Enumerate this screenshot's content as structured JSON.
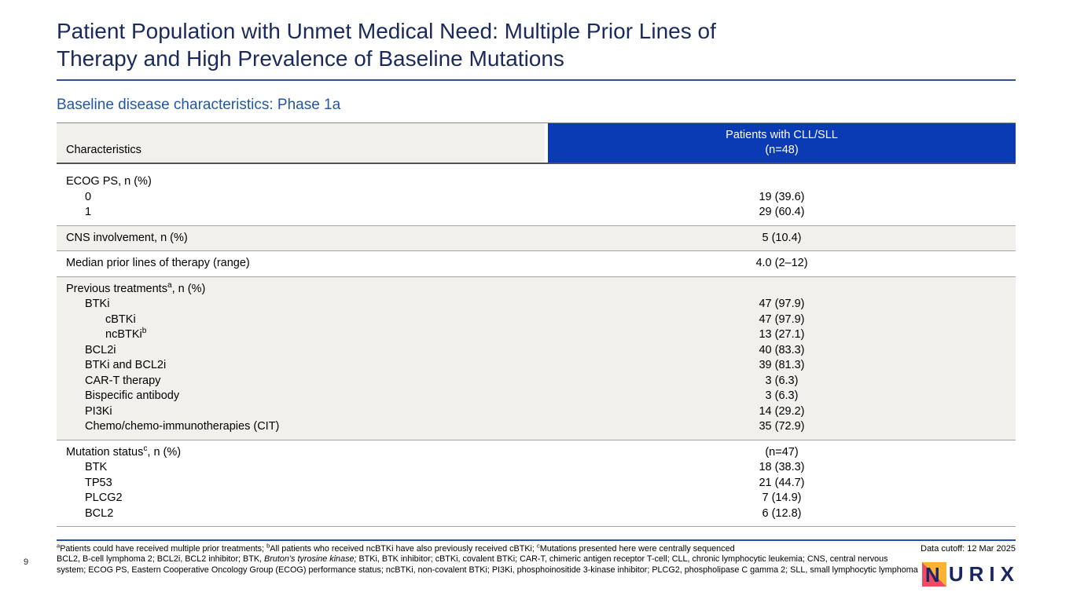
{
  "slide": {
    "title_lines": [
      "Patient Population with Unmet Medical Need: Multiple Prior Lines of",
      "Therapy and High Prevalence of Baseline Mutations"
    ],
    "subtitle": "Baseline disease characteristics: Phase 1a",
    "page_number": "9",
    "data_cutoff": "Data cutoff: 12 Mar 2025"
  },
  "table": {
    "header": {
      "col1": "Characteristics",
      "col2_line1": "Patients with CLL/SLL",
      "col2_line2": "(n=48)"
    },
    "sections": [
      {
        "shaded": false,
        "rows": [
          {
            "label": "ECOG PS, n (%)",
            "sup": "",
            "suffix": "",
            "indent": 0,
            "value": ""
          },
          {
            "label": "0",
            "sup": "",
            "suffix": "",
            "indent": 1,
            "value": "19 (39.6)"
          },
          {
            "label": "1",
            "sup": "",
            "suffix": "",
            "indent": 1,
            "value": "29 (60.4)"
          }
        ]
      },
      {
        "shaded": true,
        "rows": [
          {
            "label": "CNS involvement, n (%)",
            "sup": "",
            "suffix": "",
            "indent": 0,
            "value": "5 (10.4)"
          }
        ]
      },
      {
        "shaded": false,
        "rows": [
          {
            "label": "Median prior lines of therapy (range)",
            "sup": "",
            "suffix": "",
            "indent": 0,
            "value": "4.0 (2–12)"
          }
        ]
      },
      {
        "shaded": true,
        "rows": [
          {
            "label": "Previous treatments",
            "sup": "a",
            "suffix": ", n (%)",
            "indent": 0,
            "value": ""
          },
          {
            "label": "BTKi",
            "sup": "",
            "suffix": "",
            "indent": 1,
            "value": "47 (97.9)"
          },
          {
            "label": "cBTKi",
            "sup": "",
            "suffix": "",
            "indent": 2,
            "value": "47 (97.9)"
          },
          {
            "label": "ncBTKi",
            "sup": "b",
            "suffix": "",
            "indent": 2,
            "value": "13 (27.1)"
          },
          {
            "label": "BCL2i",
            "sup": "",
            "suffix": "",
            "indent": 1,
            "value": "40 (83.3)"
          },
          {
            "label": "BTKi and BCL2i",
            "sup": "",
            "suffix": "",
            "indent": 1,
            "value": "39 (81.3)"
          },
          {
            "label": "CAR-T therapy",
            "sup": "",
            "suffix": "",
            "indent": 1,
            "value": "3 (6.3)"
          },
          {
            "label": "Bispecific antibody",
            "sup": "",
            "suffix": "",
            "indent": 1,
            "value": "3 (6.3)"
          },
          {
            "label": "PI3Ki",
            "sup": "",
            "suffix": "",
            "indent": 1,
            "value": "14 (29.2)"
          },
          {
            "label": "Chemo/chemo-immunotherapies (CIT)",
            "sup": "",
            "suffix": "",
            "indent": 1,
            "value": "35 (72.9)"
          }
        ]
      },
      {
        "shaded": false,
        "rows": [
          {
            "label": "Mutation status",
            "sup": "c",
            "suffix": ", n (%)",
            "indent": 0,
            "value": "(n=47)"
          },
          {
            "label": "BTK",
            "sup": "",
            "suffix": "",
            "indent": 1,
            "value": "18 (38.3)"
          },
          {
            "label": "TP53",
            "sup": "",
            "suffix": "",
            "indent": 1,
            "value": "21 (44.7)"
          },
          {
            "label": "PLCG2",
            "sup": "",
            "suffix": "",
            "indent": 1,
            "value": "7 (14.9)"
          },
          {
            "label": "BCL2",
            "sup": "",
            "suffix": "",
            "indent": 1,
            "value": "6 (12.8)"
          }
        ]
      }
    ]
  },
  "footnotes": {
    "line1": [
      {
        "sup": true,
        "t": "a"
      },
      {
        "t": "Patients could have received multiple prior treatments; "
      },
      {
        "sup": true,
        "t": "b"
      },
      {
        "t": "All patients who received ncBTKi have also previously received cBTKi; "
      },
      {
        "sup": true,
        "t": "c"
      },
      {
        "t": "Mutations presented here were centrally sequenced"
      }
    ],
    "line2": [
      {
        "t": "BCL2, B-cell lymphoma 2; BCL2i, BCL2 inhibitor; BTK, "
      },
      {
        "italic": true,
        "t": "Bruton’s tyrosine kinase;"
      },
      {
        "t": " BTKi, BTK inhibitor; cBTKi, covalent BTKi; CAR-T, chimeric antigen receptor T-cell; CLL, chronic lymphocytic leukemia; CNS, central nervous"
      }
    ],
    "line3": [
      {
        "t": "system; ECOG PS, Eastern Cooperative Oncology Group (ECOG) performance status; ncBTKi, non-covalent BTKi; PI3Ki, phosphoinositide 3-kinase inhibitor; PLCG2, phospholipase C gamma 2; SLL, small lymphocytic lymphoma"
      }
    ]
  },
  "logo": {
    "n": "N",
    "rest": "URIX"
  },
  "colors": {
    "header_blue": "#0b3ab5",
    "title_navy": "#1b2a5a",
    "subtitle_blue": "#2257a6",
    "shaded_row": "#f1f0ec",
    "rule_blue": "#2353b5",
    "logo_yellow": "#f9b233",
    "logo_pink": "#ef4b63",
    "logo_navy": "#1b2660"
  }
}
